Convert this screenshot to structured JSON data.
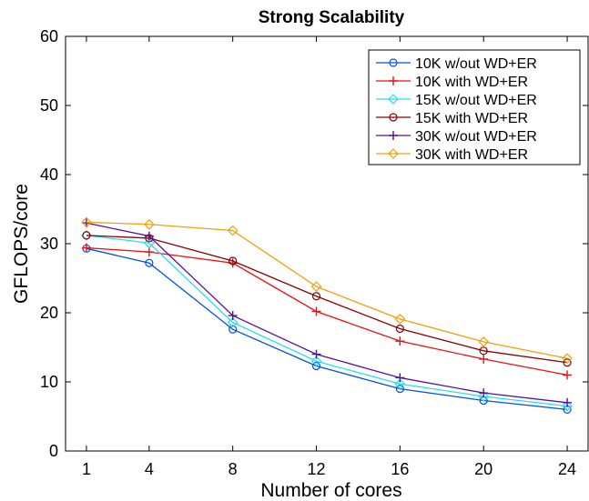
{
  "chart_data": {
    "type": "line",
    "title": "Strong Scalability",
    "xlabel": "Number of cores",
    "ylabel": "GFLOPS/core",
    "x": [
      1,
      4,
      8,
      12,
      16,
      20,
      24
    ],
    "xticks": [
      "1",
      "4",
      "8",
      "12",
      "16",
      "20",
      "24"
    ],
    "yticks": [
      "0",
      "10",
      "20",
      "30",
      "40",
      "50",
      "60"
    ],
    "xlim": [
      0,
      25
    ],
    "ylim": [
      0,
      60
    ],
    "grid": false,
    "legend_position": "top-right",
    "series": [
      {
        "name": "10K w/out WD+ER",
        "color": "#0050e6",
        "marker": "circle",
        "values": [
          29.3,
          27.2,
          17.6,
          12.3,
          9.0,
          7.3,
          6.0
        ]
      },
      {
        "name": "10K with WD+ER",
        "color": "#ee1111",
        "marker": "plus",
        "values": [
          29.4,
          28.8,
          27.2,
          20.2,
          15.9,
          13.3,
          11.0
        ]
      },
      {
        "name": "15K w/out WD+ER",
        "color": "#22e0f0",
        "marker": "diamond",
        "values": [
          31.2,
          30.1,
          18.6,
          13.0,
          9.7,
          7.9,
          6.5
        ]
      },
      {
        "name": "15K with WD+ER",
        "color": "#8b0000",
        "marker": "circle",
        "values": [
          31.2,
          30.8,
          27.5,
          22.4,
          17.7,
          14.5,
          12.8
        ]
      },
      {
        "name": "30K w/out WD+ER",
        "color": "#5a0e9e",
        "marker": "plus",
        "values": [
          33.0,
          31.1,
          19.6,
          14.0,
          10.6,
          8.4,
          7.0
        ]
      },
      {
        "name": "30K with WD+ER",
        "color": "#f0a00a",
        "marker": "diamond",
        "values": [
          33.1,
          32.8,
          31.9,
          23.8,
          19.1,
          15.8,
          13.4
        ]
      }
    ]
  }
}
